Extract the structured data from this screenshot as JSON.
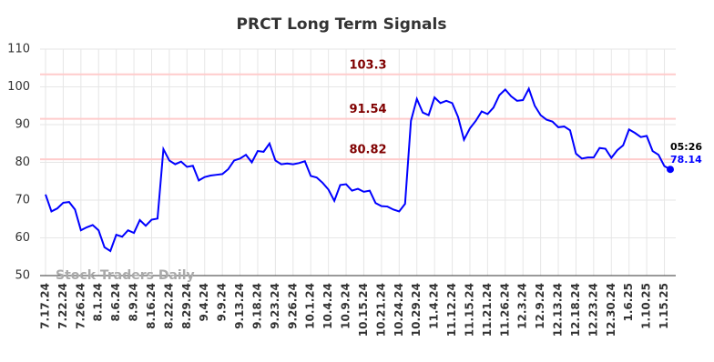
{
  "chart_data": {
    "type": "line",
    "title": "PRCT Long Term Signals",
    "watermark": "Stock Traders Daily",
    "last_time": "05:26",
    "categories": [
      "7.17.24",
      null,
      null,
      "7.22.24",
      null,
      null,
      "7.26.24",
      null,
      null,
      "8.1.24",
      null,
      null,
      "8.6.24",
      null,
      null,
      "8.9.24",
      null,
      null,
      "8.16.24",
      null,
      null,
      "8.22.24",
      null,
      null,
      "8.29.24",
      null,
      null,
      "9.4.24",
      null,
      null,
      "9.9.24",
      null,
      null,
      "9.13.24",
      null,
      null,
      "9.18.24",
      null,
      null,
      "9.23.24",
      null,
      null,
      "9.26.24",
      null,
      null,
      "10.1.24",
      null,
      null,
      "10.4.24",
      null,
      null,
      "10.9.24",
      null,
      null,
      "10.15.24",
      null,
      null,
      "10.21.24",
      null,
      null,
      "10.24.24",
      null,
      null,
      "10.29.24",
      null,
      null,
      "11.4.24",
      null,
      null,
      "11.12.24",
      null,
      null,
      "11.15.24",
      null,
      null,
      "11.21.24",
      null,
      null,
      "11.26.24",
      null,
      null,
      "12.3.24",
      null,
      null,
      "12.9.24",
      null,
      null,
      "12.13.24",
      null,
      null,
      "12.18.24",
      null,
      null,
      "12.23.24",
      null,
      null,
      "12.30.24",
      null,
      null,
      "1.6.25",
      null,
      null,
      "1.10.25",
      null,
      null,
      "1.15.25",
      null
    ],
    "series": [
      {
        "name": "PRCT",
        "color": "#0000ff",
        "values": [
          71.5,
          67,
          67.8,
          69.3,
          69.5,
          67.5,
          62,
          62.8,
          63.4,
          62,
          57.5,
          56.5,
          60.8,
          60.3,
          62,
          61.3,
          64.7,
          63.2,
          64.8,
          65.1,
          83.5,
          80.5,
          79.5,
          80.2,
          78.8,
          79.1,
          75.2,
          76.1,
          76.5,
          76.7,
          76.9,
          78.2,
          80.5,
          81,
          82,
          80,
          83,
          82.8,
          85,
          80.5,
          79.5,
          79.7,
          79.5,
          79.8,
          80.3,
          76.4,
          76,
          74.6,
          72.8,
          69.8,
          74,
          74.2,
          72.5,
          73,
          72.2,
          72.5,
          69.2,
          68.4,
          68.3,
          67.5,
          67,
          69,
          91,
          96.8,
          93.2,
          92.5,
          97.2,
          95.7,
          96.3,
          95.7,
          92,
          86,
          89,
          91,
          93.5,
          92.8,
          94.5,
          97.8,
          99.3,
          97.5,
          96.3,
          96.5,
          99.5,
          95,
          92.5,
          91.3,
          90.8,
          89.3,
          89.5,
          88.5,
          82.3,
          81,
          81.3,
          81.3,
          83.8,
          83.6,
          81.2,
          83.2,
          84.5,
          88.7,
          87.8,
          86.7,
          87,
          83,
          82,
          79,
          78.14
        ]
      }
    ],
    "hlines": [
      103.3,
      91.54,
      80.82
    ],
    "hline_color": "#ffcccc",
    "hline_label_color": "#800000",
    "ylim": [
      50,
      110
    ],
    "yticks": [
      50,
      60,
      70,
      80,
      90,
      100,
      110
    ],
    "grid": true
  }
}
